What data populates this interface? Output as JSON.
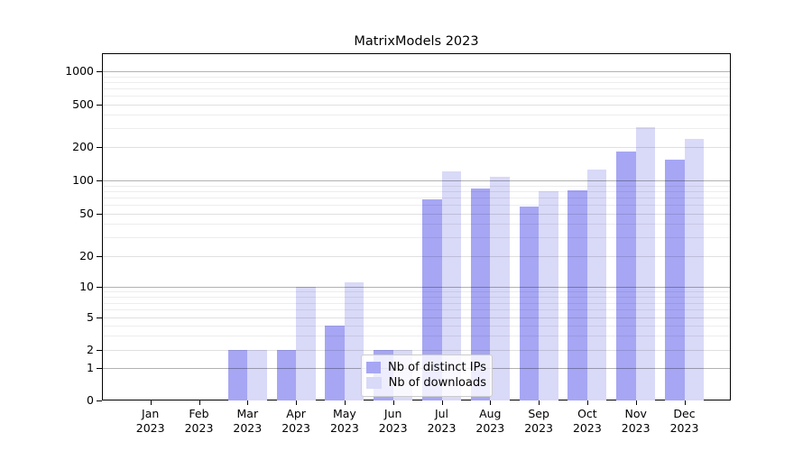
{
  "title": "MatrixModels 2023",
  "chart_data": {
    "type": "bar",
    "title": "MatrixModels 2023",
    "categories": [
      "Jan",
      "Feb",
      "Mar",
      "Apr",
      "May",
      "Jun",
      "Jul",
      "Aug",
      "Sep",
      "Oct",
      "Nov",
      "Dec"
    ],
    "category_year": "2023",
    "series": [
      {
        "name": "Nb of distinct IPs",
        "color": "#a6a6f4",
        "values": [
          0,
          0,
          2,
          2,
          4,
          2,
          67,
          85,
          58,
          82,
          183,
          155
        ]
      },
      {
        "name": "Nb of downloads",
        "color": "#d9d9f8",
        "values": [
          0,
          0,
          2,
          10,
          11,
          2,
          122,
          107,
          80,
          125,
          310,
          238
        ]
      }
    ],
    "xlabel": "",
    "ylabel": "",
    "yscale": "symlog",
    "yticks": [
      0,
      1,
      2,
      5,
      10,
      20,
      50,
      100,
      200,
      500,
      1000
    ],
    "minor_yticks": [
      3,
      4,
      6,
      7,
      8,
      9,
      30,
      40,
      60,
      70,
      80,
      90,
      300,
      400,
      600,
      700,
      800,
      900
    ],
    "ylim": [
      0,
      1200
    ],
    "grid": true,
    "legend_position": "lower center"
  }
}
